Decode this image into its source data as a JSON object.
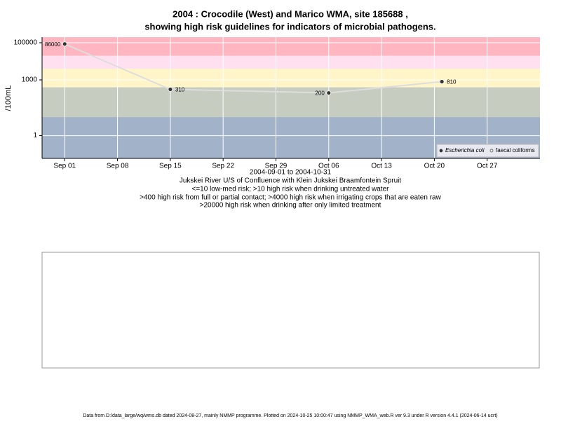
{
  "chart_data": {
    "type": "line",
    "title": "2004 : Crocodile (West) and Marico WMA, site 185688 ,",
    "subtitle": "showing high risk guidelines for indicators of microbial pathogens.",
    "y_label": "/100mL",
    "x_label": "2004-09-01 to 2004-10-31",
    "notes": [
      "Jukskei River U/S of Confluence with Klein Jukskei Braamfontein Spruit",
      "<=10 low-med risk; >10 high risk when drinking untreated water",
      ">400 high risk from full or partial contact; >4000 high risk when irrigating crops that are eaten raw",
      ">20000 high risk when drinking after only limited treatment"
    ],
    "footer": "Data from D:/data_large/wq/wms.db dated 2024-08-27, mainly NMMP programme. Plotted on 2024-10-25 10:00:47 using NMMP_WMA_web.R ver 9.3 under R version 4.4.1 (2024-06-14 ucrt)",
    "log_y": true,
    "grid": true,
    "legend_position": "bottom-right",
    "x": [
      "2004-09-01",
      "2004-09-15",
      "2004-10-06",
      "2004-10-21"
    ],
    "series": [
      {
        "name": "Escherichia coli",
        "color": "#333333",
        "line_color": "#dddddd",
        "values": [
          86000,
          310,
          200,
          810
        ]
      },
      {
        "name": "faecal coliforms",
        "color": "#ffffff",
        "values": [
          null,
          null,
          null,
          null
        ]
      }
    ],
    "risk_bands": [
      {
        "min": 20000,
        "max": 200000,
        "color": "#ffb6c1"
      },
      {
        "min": 4000,
        "max": 20000,
        "color": "#ffe0f0"
      },
      {
        "min": 400,
        "max": 4000,
        "color": "#fff5c8"
      },
      {
        "min": 10,
        "max": 400,
        "color": "#c6ccc0"
      },
      {
        "min": 0.06,
        "max": 10,
        "color": "#a2b2c8"
      }
    ],
    "xlim": [
      "2004-08-29",
      "2004-11-03"
    ],
    "xticks": [
      {
        "value": "2004-09-01",
        "label": "Sep 01"
      },
      {
        "value": "2004-09-08",
        "label": "Sep 08"
      },
      {
        "value": "2004-09-15",
        "label": "Sep 15"
      },
      {
        "value": "2004-09-22",
        "label": "Sep 22"
      },
      {
        "value": "2004-09-29",
        "label": "Sep 29"
      },
      {
        "value": "2004-10-06",
        "label": "Oct 06"
      },
      {
        "value": "2004-10-13",
        "label": "Oct 13"
      },
      {
        "value": "2004-10-20",
        "label": "Oct 20"
      },
      {
        "value": "2004-10-27",
        "label": "Oct 27"
      }
    ],
    "ylim": [
      0.06,
      200000
    ],
    "yticks": [
      1,
      1000,
      100000
    ]
  }
}
